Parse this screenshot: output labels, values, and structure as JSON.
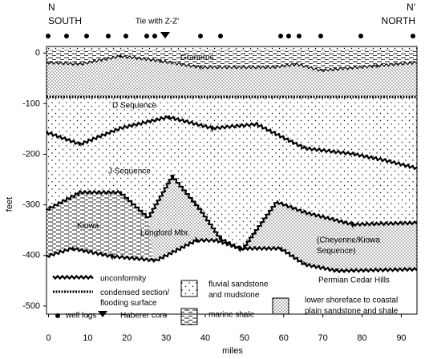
{
  "header": {
    "left_letter": "N",
    "left_direction": "SOUTH",
    "tie": "Tie with Z-Z'",
    "right_letter": "N'",
    "right_direction": "NORTH"
  },
  "axes": {
    "y_label": "feet",
    "x_label": "miles",
    "yticks": [
      0,
      -100,
      -200,
      -300,
      -400,
      -500
    ],
    "xticks": [
      0,
      10,
      20,
      30,
      40,
      50,
      60,
      70,
      80,
      90
    ],
    "ylim": [
      13,
      -516
    ],
    "xlim": [
      -0.5,
      94
    ]
  },
  "units": {
    "graneros": "Graneros",
    "d_sequence": "D Sequence",
    "j_sequence": "J Sequence",
    "kiowa": "Kiowa",
    "longford": "Longford Mbr.",
    "cheyenne_kiowa": "(Cheyenne/Kiowa Sequence)",
    "permian": "Permian Cedar Hills"
  },
  "legend": {
    "unconformity": "unconformity",
    "condensed": "condensed section/ flooding surface",
    "well_logs": "well logs",
    "core": "Haberer core",
    "fluvial": "fluvial sandstone and mudstone",
    "marine": "marine shale",
    "coastal": "lower shoreface to coastal plain sandstone and shale"
  }
}
